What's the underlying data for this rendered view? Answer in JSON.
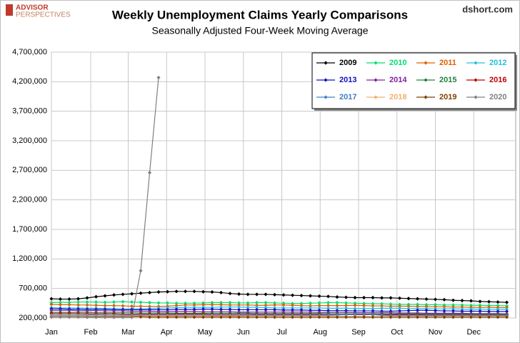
{
  "chart_data": {
    "type": "line",
    "title": "Weekly Unemployment Claims Yearly Comparisons",
    "subtitle": "Seasonally Adjusted Four-Week Moving Average",
    "source": "dshort.com",
    "logo": [
      "ADVISOR",
      "PERSPECTIVES"
    ],
    "grid": true,
    "legend": "top-right",
    "x": [
      0,
      1,
      2,
      3,
      4,
      5,
      6,
      7,
      8,
      9,
      10,
      11,
      12,
      13,
      14,
      15,
      16,
      17,
      18,
      19,
      20,
      21,
      22,
      23,
      24,
      25,
      26,
      27,
      28,
      29,
      30,
      31,
      32,
      33,
      34,
      35,
      36,
      37,
      38,
      39,
      40,
      41,
      42,
      43,
      44,
      45,
      46,
      47,
      48,
      49,
      50,
      51
    ],
    "xlim": [
      0,
      52
    ],
    "xticks": [
      {
        "value": 0,
        "label": "Jan"
      },
      {
        "value": 4.4,
        "label": "Feb"
      },
      {
        "value": 8.6,
        "label": "Mar"
      },
      {
        "value": 12.9,
        "label": "Apr"
      },
      {
        "value": 17.2,
        "label": "May"
      },
      {
        "value": 21.5,
        "label": "Jun"
      },
      {
        "value": 25.8,
        "label": "Jul"
      },
      {
        "value": 30.1,
        "label": "Aug"
      },
      {
        "value": 34.4,
        "label": "Sep"
      },
      {
        "value": 38.7,
        "label": "Oct"
      },
      {
        "value": 43,
        "label": "Nov"
      },
      {
        "value": 47.3,
        "label": "Dec"
      }
    ],
    "ylim": [
      200000,
      4700000
    ],
    "yticks": [
      {
        "value": 200000,
        "label": "200,000"
      },
      {
        "value": 700000,
        "label": "700,000"
      },
      {
        "value": 1200000,
        "label": "1,200,000"
      },
      {
        "value": 1700000,
        "label": "1,700,000"
      },
      {
        "value": 2200000,
        "label": "2,200,000"
      },
      {
        "value": 2700000,
        "label": "2,700,000"
      },
      {
        "value": 3200000,
        "label": "3,200,000"
      },
      {
        "value": 3700000,
        "label": "3,700,000"
      },
      {
        "value": 4200000,
        "label": "4,200,000"
      },
      {
        "value": 4700000,
        "label": "4,700,000"
      }
    ],
    "series": [
      {
        "name": "2009",
        "color": "#000000",
        "values": [
          525000,
          520000,
          520000,
          525000,
          540000,
          560000,
          575000,
          590000,
          600000,
          610000,
          620000,
          630000,
          640000,
          645000,
          650000,
          650000,
          650000,
          645000,
          640000,
          630000,
          615000,
          605000,
          600000,
          600000,
          600000,
          595000,
          590000,
          585000,
          580000,
          575000,
          570000,
          565000,
          555000,
          550000,
          545000,
          545000,
          545000,
          540000,
          540000,
          535000,
          530000,
          525000,
          520000,
          515000,
          510000,
          500000,
          495000,
          490000,
          480000,
          475000,
          470000,
          465000
        ]
      },
      {
        "name": "2010",
        "color": "#00e070",
        "values": [
          460000,
          465000,
          465000,
          470000,
          470000,
          470000,
          465000,
          470000,
          475000,
          470000,
          465000,
          460000,
          455000,
          455000,
          450000,
          450000,
          450000,
          455000,
          460000,
          460000,
          460000,
          455000,
          455000,
          460000,
          460000,
          455000,
          450000,
          445000,
          445000,
          450000,
          455000,
          460000,
          460000,
          455000,
          450000,
          445000,
          440000,
          440000,
          435000,
          430000,
          430000,
          430000,
          425000,
          425000,
          420000,
          420000,
          420000,
          415000,
          415000,
          410000,
          410000,
          405000
        ]
      },
      {
        "name": "2011",
        "color": "#e06000",
        "values": [
          430000,
          425000,
          425000,
          420000,
          420000,
          415000,
          410000,
          410000,
          405000,
          400000,
          400000,
          395000,
          395000,
          400000,
          410000,
          420000,
          420000,
          425000,
          425000,
          425000,
          420000,
          420000,
          420000,
          415000,
          415000,
          420000,
          420000,
          415000,
          410000,
          405000,
          410000,
          410000,
          410000,
          410000,
          415000,
          410000,
          405000,
          405000,
          400000,
          400000,
          400000,
          395000,
          395000,
          390000,
          390000,
          385000,
          385000,
          380000,
          380000,
          380000,
          375000,
          375000
        ]
      },
      {
        "name": "2012",
        "color": "#20c0e0",
        "values": [
          375000,
          370000,
          370000,
          370000,
          365000,
          365000,
          360000,
          360000,
          355000,
          355000,
          355000,
          360000,
          365000,
          370000,
          375000,
          380000,
          380000,
          380000,
          380000,
          385000,
          385000,
          385000,
          380000,
          380000,
          375000,
          370000,
          370000,
          370000,
          370000,
          370000,
          370000,
          365000,
          365000,
          365000,
          360000,
          360000,
          360000,
          365000,
          365000,
          365000,
          360000,
          360000,
          360000,
          355000,
          355000,
          355000,
          350000,
          350000,
          350000,
          345000,
          345000,
          345000
        ]
      },
      {
        "name": "2013",
        "color": "#1010c0",
        "values": [
          355000,
          355000,
          350000,
          350000,
          345000,
          345000,
          345000,
          340000,
          340000,
          340000,
          340000,
          340000,
          340000,
          340000,
          345000,
          345000,
          345000,
          350000,
          350000,
          345000,
          345000,
          340000,
          340000,
          340000,
          340000,
          340000,
          335000,
          335000,
          335000,
          330000,
          330000,
          325000,
          325000,
          325000,
          320000,
          320000,
          320000,
          315000,
          315000,
          320000,
          325000,
          330000,
          330000,
          325000,
          320000,
          320000,
          315000,
          315000,
          315000,
          310000,
          310000,
          310000
        ]
      },
      {
        "name": "2014",
        "color": "#8020a0",
        "values": [
          330000,
          330000,
          330000,
          325000,
          325000,
          325000,
          320000,
          320000,
          320000,
          315000,
          315000,
          315000,
          310000,
          310000,
          310000,
          310000,
          310000,
          305000,
          305000,
          305000,
          305000,
          300000,
          300000,
          300000,
          300000,
          300000,
          300000,
          300000,
          300000,
          300000,
          295000,
          295000,
          295000,
          295000,
          290000,
          290000,
          290000,
          290000,
          290000,
          285000,
          285000,
          285000,
          280000,
          280000,
          280000,
          280000,
          280000,
          275000,
          275000,
          275000,
          275000,
          270000
        ]
      },
      {
        "name": "2015",
        "color": "#208040",
        "values": [
          295000,
          295000,
          295000,
          295000,
          295000,
          290000,
          290000,
          290000,
          290000,
          290000,
          285000,
          285000,
          285000,
          285000,
          280000,
          280000,
          280000,
          280000,
          280000,
          280000,
          280000,
          280000,
          280000,
          275000,
          275000,
          275000,
          275000,
          275000,
          275000,
          275000,
          275000,
          275000,
          270000,
          270000,
          270000,
          270000,
          270000,
          270000,
          270000,
          270000,
          270000,
          270000,
          265000,
          265000,
          265000,
          265000,
          265000,
          265000,
          265000,
          265000,
          265000,
          265000
        ]
      },
      {
        "name": "2016",
        "color": "#c00000",
        "values": [
          275000,
          275000,
          275000,
          275000,
          270000,
          270000,
          270000,
          270000,
          265000,
          265000,
          265000,
          265000,
          265000,
          265000,
          265000,
          265000,
          265000,
          265000,
          260000,
          260000,
          260000,
          260000,
          260000,
          260000,
          260000,
          260000,
          260000,
          260000,
          260000,
          260000,
          260000,
          255000,
          255000,
          255000,
          255000,
          255000,
          255000,
          255000,
          255000,
          255000,
          255000,
          255000,
          250000,
          250000,
          250000,
          250000,
          250000,
          250000,
          250000,
          250000,
          250000,
          250000
        ]
      },
      {
        "name": "2017",
        "color": "#4080c0",
        "values": [
          250000,
          250000,
          250000,
          250000,
          250000,
          250000,
          245000,
          245000,
          245000,
          245000,
          245000,
          245000,
          245000,
          245000,
          245000,
          245000,
          245000,
          245000,
          245000,
          245000,
          245000,
          245000,
          245000,
          245000,
          245000,
          245000,
          245000,
          245000,
          245000,
          245000,
          245000,
          245000,
          250000,
          255000,
          260000,
          265000,
          255000,
          245000,
          240000,
          240000,
          240000,
          240000,
          240000,
          240000,
          240000,
          240000,
          240000,
          240000,
          240000,
          240000,
          240000,
          240000
        ]
      },
      {
        "name": "2018",
        "color": "#f0b070",
        "values": [
          235000,
          235000,
          235000,
          235000,
          235000,
          230000,
          230000,
          230000,
          230000,
          230000,
          230000,
          230000,
          230000,
          230000,
          230000,
          230000,
          230000,
          230000,
          230000,
          230000,
          230000,
          230000,
          225000,
          225000,
          225000,
          225000,
          225000,
          225000,
          225000,
          225000,
          225000,
          225000,
          225000,
          225000,
          225000,
          225000,
          220000,
          220000,
          220000,
          220000,
          220000,
          220000,
          220000,
          220000,
          220000,
          220000,
          220000,
          220000,
          220000,
          220000,
          220000,
          220000
        ]
      },
      {
        "name": "2019",
        "color": "#804000",
        "values": [
          220000,
          220000,
          220000,
          220000,
          220000,
          220000,
          220000,
          220000,
          220000,
          220000,
          220000,
          215000,
          215000,
          215000,
          215000,
          215000,
          215000,
          215000,
          215000,
          215000,
          215000,
          215000,
          215000,
          215000,
          215000,
          215000,
          215000,
          215000,
          215000,
          215000,
          215000,
          215000,
          215000,
          215000,
          215000,
          215000,
          215000,
          215000,
          215000,
          215000,
          215000,
          215000,
          215000,
          215000,
          215000,
          215000,
          215000,
          215000,
          215000,
          215000,
          215000,
          215000
        ]
      },
      {
        "name": "2020",
        "color": "#808080",
        "values": [
          215000,
          215000,
          215000,
          215000,
          212000,
          212000,
          212000,
          212000,
          212000,
          212000,
          1000000,
          2660000,
          4270000,
          null,
          null,
          null,
          null,
          null,
          null,
          null,
          null,
          null,
          null,
          null,
          null,
          null,
          null,
          null,
          null,
          null,
          null,
          null,
          null,
          null,
          null,
          null,
          null,
          null,
          null,
          null,
          null,
          null,
          null,
          null,
          null,
          null,
          null,
          null,
          null,
          null,
          null,
          null
        ]
      }
    ]
  }
}
